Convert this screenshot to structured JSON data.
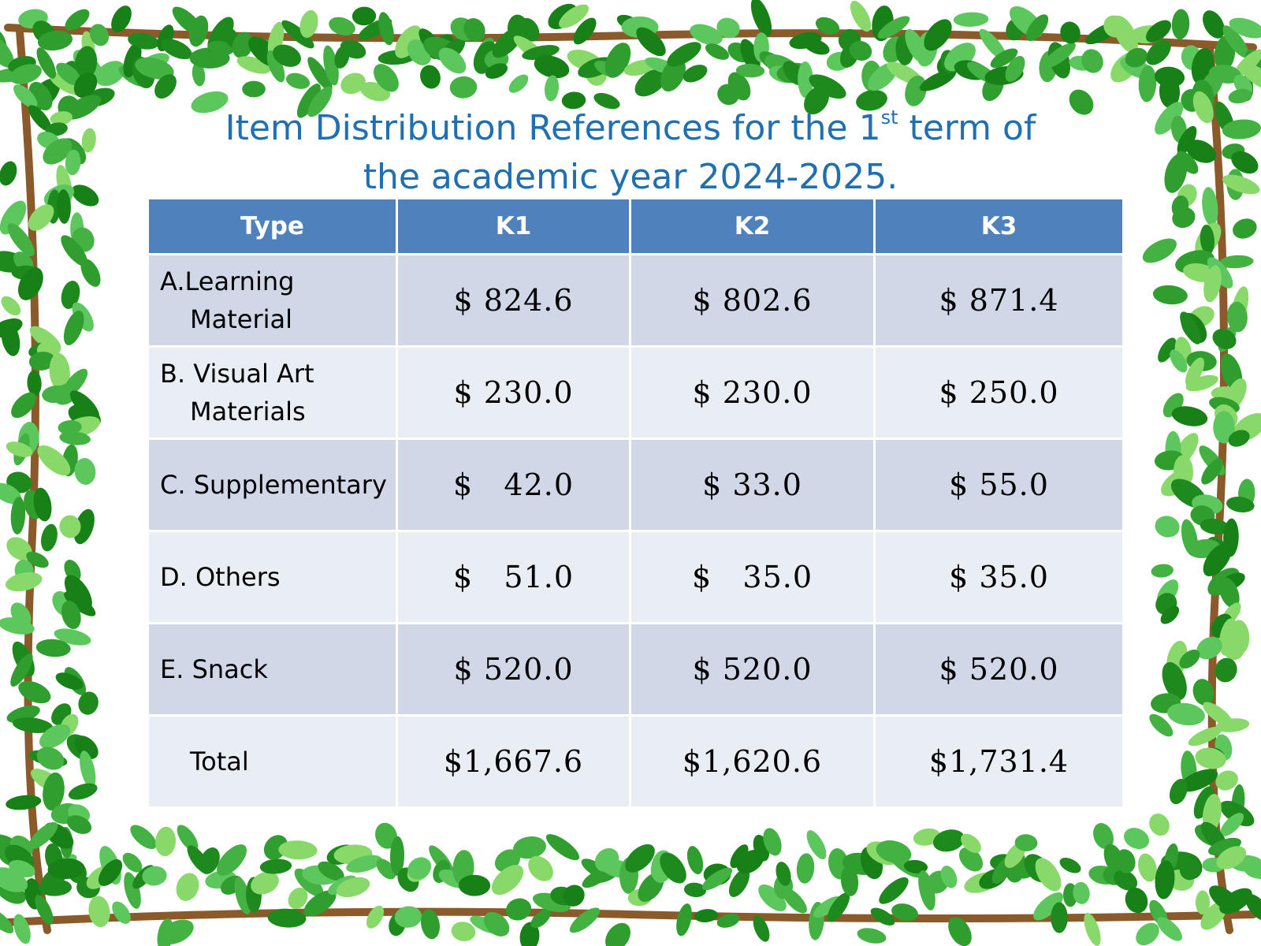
{
  "title": {
    "line1_prefix": "Item Distribution References for the 1",
    "superscript": "st",
    "line1_suffix": " term of",
    "line2": "the academic year 2024-2025."
  },
  "table": {
    "headers": [
      "Type",
      "K1",
      "K2",
      "K3"
    ],
    "rows": [
      {
        "type_line1": "A.Learning",
        "type_line2": "Material",
        "values": [
          "$ 824.6",
          "$ 802.6",
          "$ 871.4"
        ]
      },
      {
        "type_line1": "B. Visual Art",
        "type_line2": "Materials",
        "values": [
          "$ 230.0",
          "$ 230.0",
          "$ 250.0"
        ]
      },
      {
        "type_line1": "C. Supplementary",
        "type_line2": "",
        "values": [
          "$   42.0",
          "$ 33.0",
          "$ 55.0"
        ]
      },
      {
        "type_line1": "D. Others",
        "type_line2": "",
        "values": [
          "$   51.0",
          "$   35.0",
          "$ 35.0"
        ]
      },
      {
        "type_line1": "E. Snack",
        "type_line2": "",
        "values": [
          "$ 520.0",
          "$ 520.0",
          "$ 520.0"
        ]
      },
      {
        "type_line1": "",
        "type_line2": "Total",
        "values": [
          "$1,667.6",
          "$1,620.6",
          "$1,731.4"
        ]
      }
    ]
  },
  "decoration": {
    "frame": "green-leaf-vine-border-icon",
    "leaf_color": "#2f9e2f",
    "branch_color": "#8b5a2b"
  }
}
